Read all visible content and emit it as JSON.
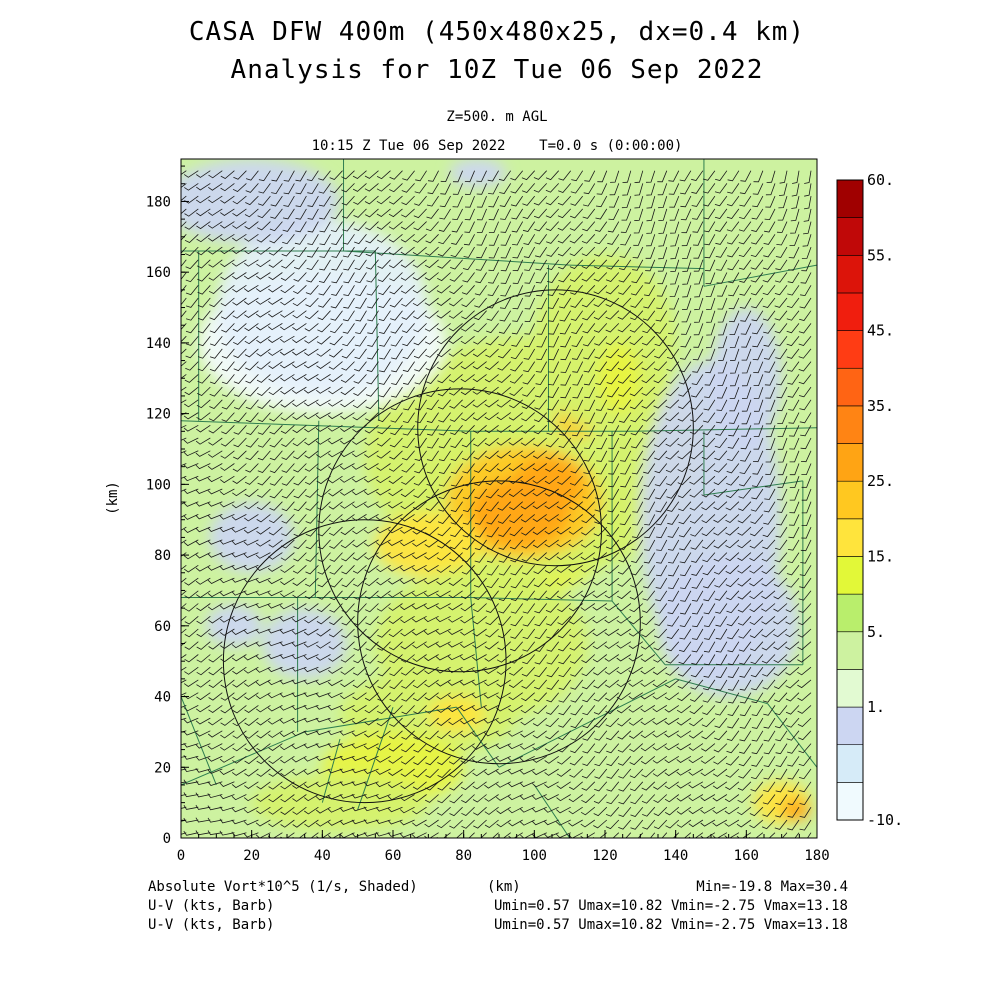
{
  "header": {
    "title_line1": "CASA DFW 400m (450x480x25, dx=0.4 km)",
    "title_line2": "Analysis for 10Z Tue 06 Sep 2022",
    "level": "Z=500. m AGL",
    "valid_time": "10:15 Z Tue 06 Sep 2022    T=0.0 s (0:00:00)"
  },
  "footer": {
    "field_label": "Absolute Vort*10^5 (1/s, Shaded)",
    "xunit_label": "(km)",
    "minmax": "Min=-19.8 Max=30.4",
    "barb1_label": "U-V (kts, Barb)",
    "barb1_stats": "Umin=0.57 Umax=10.82 Vmin=-2.75 Vmax=13.18",
    "barb2_label": "U-V (kts, Barb)",
    "barb2_stats": "Umin=0.57 Umax=10.82 Vmin=-2.75 Vmax=13.18"
  },
  "chart_data": {
    "type": "heatmap",
    "field": "Absolute Vort*10^5 (1/s)",
    "xlabel": "(km)",
    "ylabel": "(km)",
    "xlim": [
      0,
      180
    ],
    "ylim": [
      0,
      192
    ],
    "xticks": [
      "0",
      "20",
      "40",
      "60",
      "80",
      "100",
      "120",
      "140",
      "160",
      "180"
    ],
    "yticks": [
      "0",
      "20",
      "40",
      "60",
      "80",
      "100",
      "120",
      "140",
      "160",
      "180"
    ],
    "min": -19.8,
    "max": 30.4,
    "colorbar": {
      "labels": [
        "60.",
        "55.",
        "45.",
        "35.",
        "25.",
        "15.",
        "5.",
        "1.",
        "-10."
      ],
      "colors": [
        "#f0fafe",
        "#d6ebf8",
        "#ccd6f2",
        "#e2fad2",
        "#cdf2a0",
        "#b9ee6c",
        "#e2f838",
        "#ffe43c",
        "#ffc820",
        "#ffa414",
        "#ff8414",
        "#ff6414",
        "#ff3c14",
        "#f01e0e",
        "#dc140a",
        "#c00808",
        "#a00000"
      ]
    },
    "radar_rings": [
      {
        "x": 106,
        "y": 116,
        "r": 39
      },
      {
        "x": 79,
        "y": 87,
        "r": 40
      },
      {
        "x": 90,
        "y": 61,
        "r": 40
      },
      {
        "x": 52,
        "y": 50,
        "r": 40
      }
    ],
    "vort_blobs": [
      {
        "x": 95,
        "y": 92,
        "rx": 30,
        "ry": 24,
        "v": 14
      },
      {
        "x": 100,
        "y": 108,
        "rx": 48,
        "ry": 34,
        "v": 9
      },
      {
        "x": 97,
        "y": 95,
        "rx": 22,
        "ry": 16,
        "v": 20
      },
      {
        "x": 96,
        "y": 92,
        "rx": 14,
        "ry": 10,
        "v": 26
      },
      {
        "x": 104,
        "y": 100,
        "rx": 10,
        "ry": 8,
        "v": 24
      },
      {
        "x": 112,
        "y": 118,
        "rx": 6,
        "ry": 5,
        "v": 21
      },
      {
        "x": 70,
        "y": 83,
        "rx": 15,
        "ry": 9,
        "v": 18
      },
      {
        "x": 85,
        "y": 55,
        "rx": 30,
        "ry": 22,
        "v": 8
      },
      {
        "x": 70,
        "y": 35,
        "rx": 25,
        "ry": 12,
        "v": 10
      },
      {
        "x": 78,
        "y": 35,
        "rx": 8,
        "ry": 5,
        "v": 18
      },
      {
        "x": 60,
        "y": 20,
        "rx": 20,
        "ry": 10,
        "v": 12
      },
      {
        "x": 45,
        "y": 10,
        "rx": 25,
        "ry": 8,
        "v": 11
      },
      {
        "x": 120,
        "y": 140,
        "rx": 20,
        "ry": 25,
        "v": 9
      },
      {
        "x": 124,
        "y": 130,
        "rx": 6,
        "ry": 10,
        "v": 15
      },
      {
        "x": 40,
        "y": 140,
        "rx": 35,
        "ry": 20,
        "v": -15
      },
      {
        "x": 40,
        "y": 150,
        "rx": 30,
        "ry": 25,
        "v": -5
      },
      {
        "x": 20,
        "y": 180,
        "rx": 25,
        "ry": 12,
        "v": 0
      },
      {
        "x": 20,
        "y": 85,
        "rx": 12,
        "ry": 10,
        "v": -2
      },
      {
        "x": 35,
        "y": 55,
        "rx": 12,
        "ry": 10,
        "v": -1
      },
      {
        "x": 15,
        "y": 60,
        "rx": 8,
        "ry": 6,
        "v": -1
      },
      {
        "x": 150,
        "y": 90,
        "rx": 20,
        "ry": 45,
        "v": -1
      },
      {
        "x": 155,
        "y": 60,
        "rx": 20,
        "ry": 20,
        "v": -2
      },
      {
        "x": 160,
        "y": 130,
        "rx": 10,
        "ry": 20,
        "v": -1
      },
      {
        "x": 84,
        "y": 188,
        "rx": 8,
        "ry": 4,
        "v": -1
      },
      {
        "x": 170,
        "y": 10,
        "rx": 8,
        "ry": 6,
        "v": 16
      },
      {
        "x": 174,
        "y": 8,
        "rx": 4,
        "ry": 3,
        "v": 24
      }
    ],
    "county_lines": [
      [
        [
          0,
          166
        ],
        [
          55,
          166
        ]
      ],
      [
        [
          46,
          192
        ],
        [
          46,
          166
        ]
      ],
      [
        [
          46,
          166
        ],
        [
          110,
          162
        ]
      ],
      [
        [
          110,
          162
        ],
        [
          148,
          161
        ]
      ],
      [
        [
          148,
          192
        ],
        [
          148,
          156
        ]
      ],
      [
        [
          148,
          156
        ],
        [
          180,
          162
        ]
      ],
      [
        [
          5,
          166
        ],
        [
          5,
          118
        ]
      ],
      [
        [
          0,
          118
        ],
        [
          82,
          115
        ]
      ],
      [
        [
          82,
          115
        ],
        [
          128,
          115
        ]
      ],
      [
        [
          128,
          115
        ],
        [
          180,
          116
        ]
      ],
      [
        [
          55,
          166
        ],
        [
          56,
          118
        ]
      ],
      [
        [
          39,
          118
        ],
        [
          38,
          68
        ]
      ],
      [
        [
          0,
          68
        ],
        [
          38,
          68
        ]
      ],
      [
        [
          38,
          68
        ],
        [
          82,
          68
        ]
      ],
      [
        [
          82,
          68
        ],
        [
          122,
          67
        ]
      ],
      [
        [
          122,
          115
        ],
        [
          122,
          67
        ]
      ],
      [
        [
          82,
          115
        ],
        [
          82,
          68
        ]
      ],
      [
        [
          104,
          162
        ],
        [
          104,
          115
        ]
      ],
      [
        [
          148,
          115
        ],
        [
          148,
          97
        ]
      ],
      [
        [
          148,
          97
        ],
        [
          176,
          101
        ]
      ],
      [
        [
          176,
          101
        ],
        [
          176,
          49
        ]
      ],
      [
        [
          137,
          49
        ],
        [
          176,
          49
        ]
      ],
      [
        [
          122,
          67
        ],
        [
          137,
          49
        ]
      ],
      [
        [
          0,
          40
        ],
        [
          10,
          15
        ]
      ],
      [
        [
          0,
          15
        ],
        [
          35,
          30
        ]
      ],
      [
        [
          35,
          30
        ],
        [
          78,
          37
        ]
      ],
      [
        [
          78,
          37
        ],
        [
          90,
          20
        ]
      ],
      [
        [
          90,
          20
        ],
        [
          140,
          45
        ]
      ],
      [
        [
          140,
          45
        ],
        [
          166,
          38
        ]
      ],
      [
        [
          166,
          38
        ],
        [
          180,
          20
        ]
      ],
      [
        [
          82,
          68
        ],
        [
          85,
          37
        ]
      ],
      [
        [
          33,
          68
        ],
        [
          33,
          30
        ]
      ],
      [
        [
          45,
          28
        ],
        [
          40,
          10
        ]
      ],
      [
        [
          60,
          37
        ],
        [
          50,
          8
        ]
      ],
      [
        [
          100,
          15
        ],
        [
          110,
          0
        ]
      ]
    ],
    "wind": {
      "dir_low_deg": 200,
      "dir_high_deg": 250,
      "speed_kts": [
        5,
        15
      ]
    }
  }
}
